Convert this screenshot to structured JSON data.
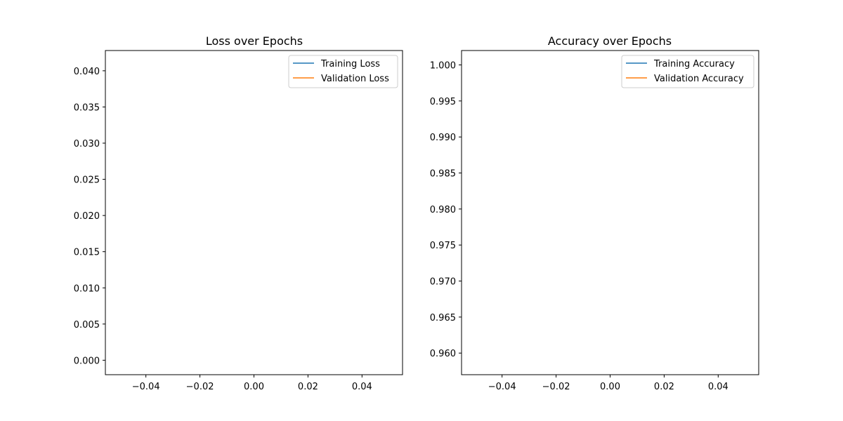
{
  "chart_data": [
    {
      "type": "line",
      "title": "Loss over Epochs",
      "xlabel": "",
      "ylabel": "",
      "xlim": [
        -0.055,
        0.055
      ],
      "ylim": [
        -0.002,
        0.0428
      ],
      "xticks": [
        -0.04,
        -0.02,
        0.0,
        0.02,
        0.04
      ],
      "xtick_labels": [
        "−0.04",
        "−0.02",
        "0.00",
        "0.02",
        "0.04"
      ],
      "yticks": [
        0.0,
        0.005,
        0.01,
        0.015,
        0.02,
        0.025,
        0.03,
        0.035,
        0.04
      ],
      "ytick_labels": [
        "0.000",
        "0.005",
        "0.010",
        "0.015",
        "0.020",
        "0.025",
        "0.030",
        "0.035",
        "0.040"
      ],
      "grid": false,
      "legend_position": "top-right",
      "series": [
        {
          "name": "Training Loss",
          "color": "#1f77b4",
          "x": [],
          "y": []
        },
        {
          "name": "Validation Loss",
          "color": "#ff7f0e",
          "x": [],
          "y": []
        }
      ]
    },
    {
      "type": "line",
      "title": "Accuracy over Epochs",
      "xlabel": "",
      "ylabel": "",
      "xlim": [
        -0.055,
        0.055
      ],
      "ylim": [
        0.957,
        1.002
      ],
      "xticks": [
        -0.04,
        -0.02,
        0.0,
        0.02,
        0.04
      ],
      "xtick_labels": [
        "−0.04",
        "−0.02",
        "0.00",
        "0.02",
        "0.04"
      ],
      "yticks": [
        0.96,
        0.965,
        0.97,
        0.975,
        0.98,
        0.985,
        0.99,
        0.995,
        1.0
      ],
      "ytick_labels": [
        "0.960",
        "0.965",
        "0.970",
        "0.975",
        "0.980",
        "0.985",
        "0.990",
        "0.995",
        "1.000"
      ],
      "grid": false,
      "legend_position": "top-right",
      "series": [
        {
          "name": "Training Accuracy",
          "color": "#1f77b4",
          "x": [],
          "y": []
        },
        {
          "name": "Validation Accuracy",
          "color": "#ff7f0e",
          "x": [],
          "y": []
        }
      ]
    }
  ]
}
